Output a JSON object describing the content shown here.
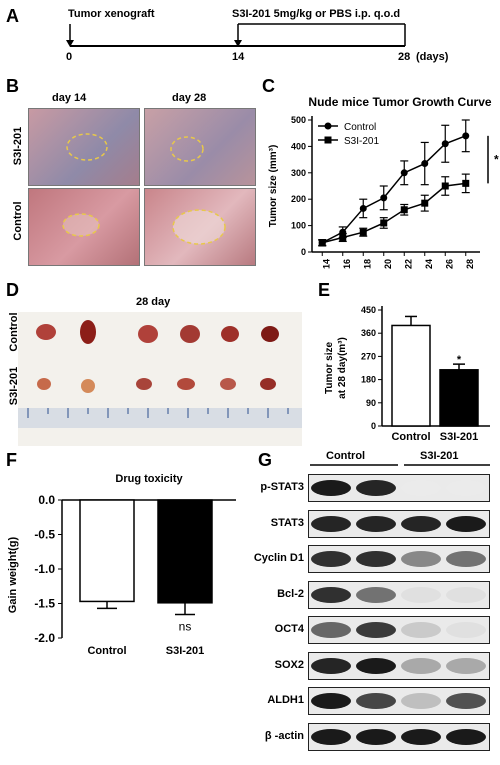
{
  "panels": {
    "A": "A",
    "B": "B",
    "C": "C",
    "D": "D",
    "E": "E",
    "F": "F",
    "G": "G"
  },
  "timeline": {
    "start_label": "Tumor xenograft",
    "treat_label": "S3I-201 5mg/kg or PBS i.p. q.o.d",
    "ticks": [
      "0",
      "14",
      "28"
    ],
    "unit": "(days)"
  },
  "photos": {
    "cols": [
      "day 14",
      "day 28"
    ],
    "rows": [
      "S3I-201",
      "Control"
    ]
  },
  "tumors": {
    "title": "28 day",
    "rows": [
      "Control",
      "S3I-201"
    ]
  },
  "blot": {
    "groups": [
      "Control",
      "S3I-201"
    ],
    "labels": [
      "p-STAT3",
      "STAT3",
      "Cyclin D1",
      "Bcl-2",
      "OCT4",
      "SOX2",
      "ALDH1",
      "β -actin"
    ]
  },
  "colors": {
    "control": "#ffffff",
    "treated": "#000000",
    "photo_bg": "#b07a80",
    "ellipse": "#e8c84a"
  },
  "chart_data": [
    {
      "id": "C",
      "type": "line",
      "title": "Nude mice Tumor Growth Curve",
      "xlabel": "",
      "ylabel": "Tumor size (mm³)",
      "x": [
        14,
        16,
        18,
        20,
        22,
        24,
        26,
        28
      ],
      "xlim": [
        13,
        29
      ],
      "ylim": [
        0,
        500
      ],
      "yticks": [
        0,
        100,
        200,
        300,
        400,
        500
      ],
      "series": [
        {
          "name": "Control",
          "marker": "circle",
          "values": [
            35,
            75,
            165,
            205,
            300,
            335,
            410,
            440
          ],
          "errors": [
            12,
            20,
            35,
            45,
            45,
            80,
            70,
            60
          ]
        },
        {
          "name": "S3I-201",
          "marker": "square",
          "values": [
            35,
            55,
            75,
            110,
            160,
            185,
            250,
            260
          ],
          "errors": [
            10,
            15,
            15,
            20,
            20,
            30,
            35,
            35
          ]
        }
      ],
      "significance": "*",
      "legend": "top-left"
    },
    {
      "id": "E",
      "type": "bar",
      "title": "",
      "xlabel": "",
      "ylabel": "Tumor size at 28 day(m³)",
      "categories": [
        "Control",
        "S3I-201"
      ],
      "values": [
        390,
        218
      ],
      "errors": [
        35,
        22
      ],
      "ylim": [
        0,
        450
      ],
      "yticks": [
        0,
        90,
        180,
        270,
        360,
        450
      ],
      "significance": "*"
    },
    {
      "id": "F",
      "type": "bar",
      "title": "Drug toxicity",
      "xlabel": "",
      "ylabel": "Gain weight(g)",
      "categories": [
        "Control",
        "S3I-201"
      ],
      "values": [
        -1.47,
        -1.49
      ],
      "errors": [
        0.1,
        0.17
      ],
      "ylim": [
        -2.0,
        0.0
      ],
      "yticks": [
        0.0,
        -0.5,
        -1.0,
        -1.5,
        -2.0
      ],
      "annotation": "ns"
    }
  ]
}
